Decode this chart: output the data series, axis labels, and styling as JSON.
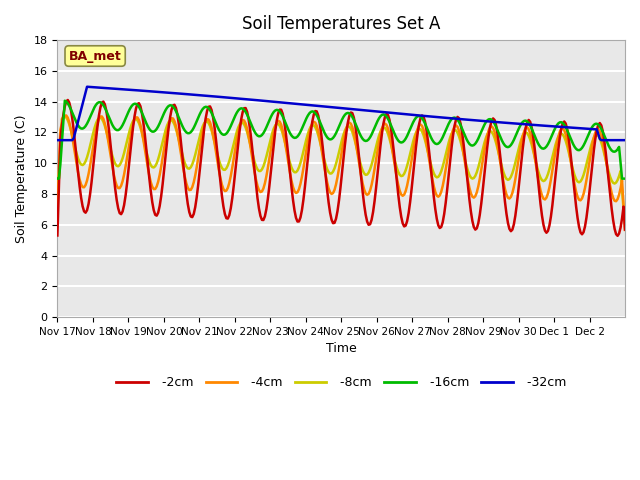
{
  "title": "Soil Temperatures Set A",
  "xlabel": "Time",
  "ylabel": "Soil Temperature (C)",
  "ylim": [
    0,
    18
  ],
  "yticks": [
    0,
    2,
    4,
    6,
    8,
    10,
    12,
    14,
    16,
    18
  ],
  "xtick_labels": [
    "Nov 17",
    "Nov 18",
    "Nov 19",
    "Nov 20",
    "Nov 21",
    "Nov 22",
    "Nov 23",
    "Nov 24",
    "Nov 25",
    "Nov 26",
    "Nov 27",
    "Nov 28",
    "Nov 29",
    "Nov 30",
    "Dec 1",
    "Dec 2"
  ],
  "series_colors": {
    "-2cm": "#cc0000",
    "-4cm": "#ff8800",
    "-8cm": "#cccc00",
    "-16cm": "#00bb00",
    "-32cm": "#0000cc"
  },
  "legend_label": "BA_met",
  "background_color": "#ffffff",
  "plot_bg_color": "#e8e8e8",
  "grid_color": "#ffffff",
  "annotation_box_color": "#ffff99",
  "annotation_text_color": "#800000",
  "n_days": 16,
  "n_pts_per_day": 24
}
